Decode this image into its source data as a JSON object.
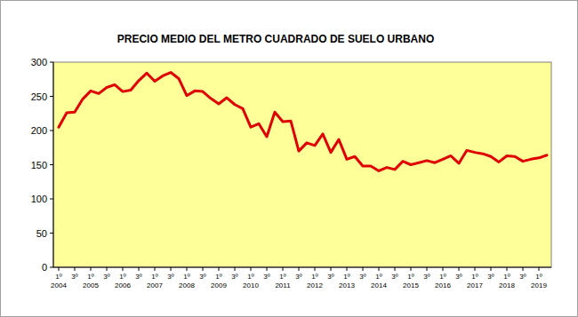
{
  "chart_data": {
    "type": "line",
    "title": "PRECIO MEDIO DEL METRO CUADRADO DE SUELO URBANO",
    "categories": [
      "1º 2004",
      null,
      "3º",
      null,
      "1º 2005",
      null,
      "3º",
      null,
      "1º 2006",
      null,
      "3º",
      null,
      "1º 2007",
      null,
      "3º",
      null,
      "1º 2008",
      null,
      "3º",
      null,
      "1º 2009",
      null,
      "3º",
      null,
      "1º 2010",
      null,
      "3º",
      null,
      "1º 2011",
      null,
      "3º",
      null,
      "1º 2012",
      null,
      "3º",
      null,
      "1º 2013",
      null,
      "3º",
      null,
      "1º 2014",
      null,
      "3º",
      null,
      "1º 2015",
      null,
      "3º",
      null,
      "1º 2016",
      null,
      "3º",
      null,
      "1º 2017",
      null,
      "3º",
      null,
      "1º 2018",
      null,
      "3º",
      null,
      "1º 2019",
      null
    ],
    "values": [
      205,
      226,
      227,
      246,
      258,
      254,
      263,
      267,
      257,
      259,
      273,
      284,
      272,
      280,
      285,
      276,
      251,
      258,
      257,
      247,
      239,
      248,
      238,
      232,
      205,
      210,
      191,
      227,
      213,
      214,
      170,
      182,
      178,
      195,
      168,
      187,
      158,
      162,
      148,
      148,
      141,
      146,
      143,
      155,
      150,
      153,
      156,
      153,
      158,
      163,
      152,
      171,
      168,
      166,
      162,
      154,
      163,
      162,
      155,
      158,
      160,
      164
    ],
    "color": "#e00000",
    "ylim": [
      0,
      300
    ],
    "yticks": [
      0,
      50,
      100,
      150,
      200,
      250,
      300
    ],
    "grid": false
  }
}
